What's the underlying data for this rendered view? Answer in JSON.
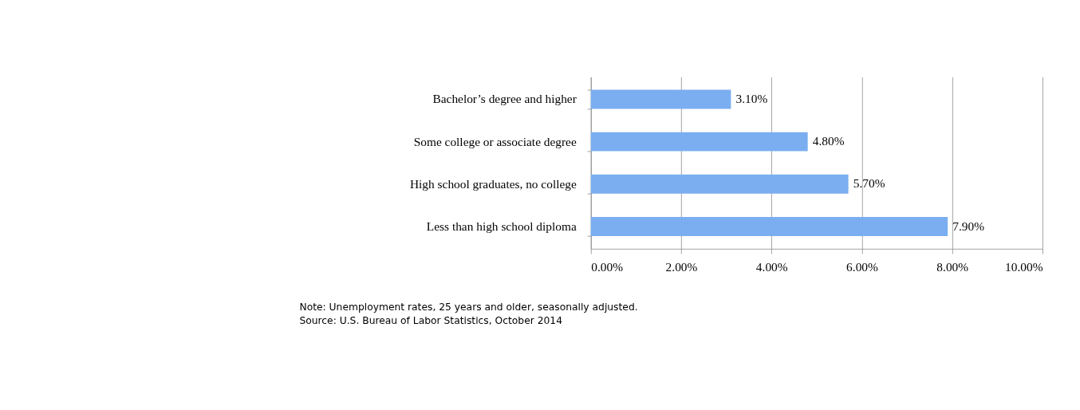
{
  "chart_data": {
    "type": "bar",
    "orientation": "horizontal",
    "categories": [
      "Bachelor’s degree and higher",
      "Some college or associate degree",
      "High school graduates, no college",
      "Less than high school diploma"
    ],
    "values": [
      3.1,
      4.8,
      5.7,
      7.9
    ],
    "value_labels": [
      "3.10%",
      "4.80%",
      "5.70%",
      "7.90%"
    ],
    "color": "#7aaef0",
    "xlim": [
      0,
      10
    ],
    "xticks": [
      {
        "value": 0,
        "label": "0.00%"
      },
      {
        "value": 2,
        "label": "2.00%"
      },
      {
        "value": 4,
        "label": "4.00%"
      },
      {
        "value": 6,
        "label": "6.00%"
      },
      {
        "value": 8,
        "label": "8.00%"
      },
      {
        "value": 10,
        "label": "10.00%"
      }
    ],
    "grid": "x",
    "annotations": [
      "Note: Unemployment rates, 25 years and older, seasonally adjusted.",
      "Source: U.S. Bureau of Labor Statistics, October 2014"
    ]
  }
}
